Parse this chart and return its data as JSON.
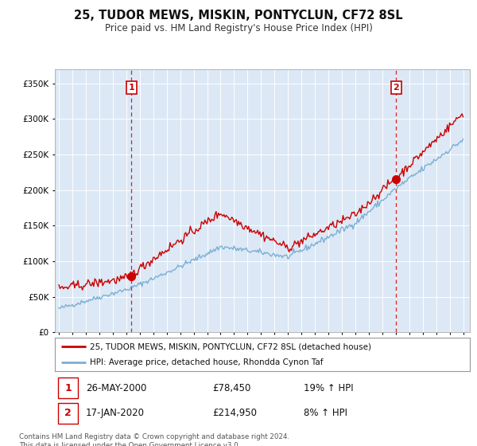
{
  "title": "25, TUDOR MEWS, MISKIN, PONTYCLUN, CF72 8SL",
  "subtitle": "Price paid vs. HM Land Registry's House Price Index (HPI)",
  "sale1_date": "26-MAY-2000",
  "sale1_price": 78450,
  "sale1_hpi": "19% ↑ HPI",
  "sale2_date": "17-JAN-2020",
  "sale2_price": 214950,
  "sale2_hpi": "8% ↑ HPI",
  "legend_line1": "25, TUDOR MEWS, MISKIN, PONTYCLUN, CF72 8SL (detached house)",
  "legend_line2": "HPI: Average price, detached house, Rhondda Cynon Taf",
  "footer": "Contains HM Land Registry data © Crown copyright and database right 2024.\nThis data is licensed under the Open Government Licence v3.0.",
  "line_color_price": "#cc0000",
  "line_color_hpi": "#7bafd4",
  "dashed_color": "#cc0000",
  "background_color": "#ffffff",
  "plot_bg_color": "#dce8f5",
  "grid_color": "#ffffff",
  "ylim": [
    0,
    370000
  ],
  "yticks": [
    0,
    50000,
    100000,
    150000,
    200000,
    250000,
    300000,
    350000
  ],
  "xlim_start": 1994.7,
  "xlim_end": 2025.5,
  "sale1_x": 2000.38,
  "sale2_x": 2020.04
}
